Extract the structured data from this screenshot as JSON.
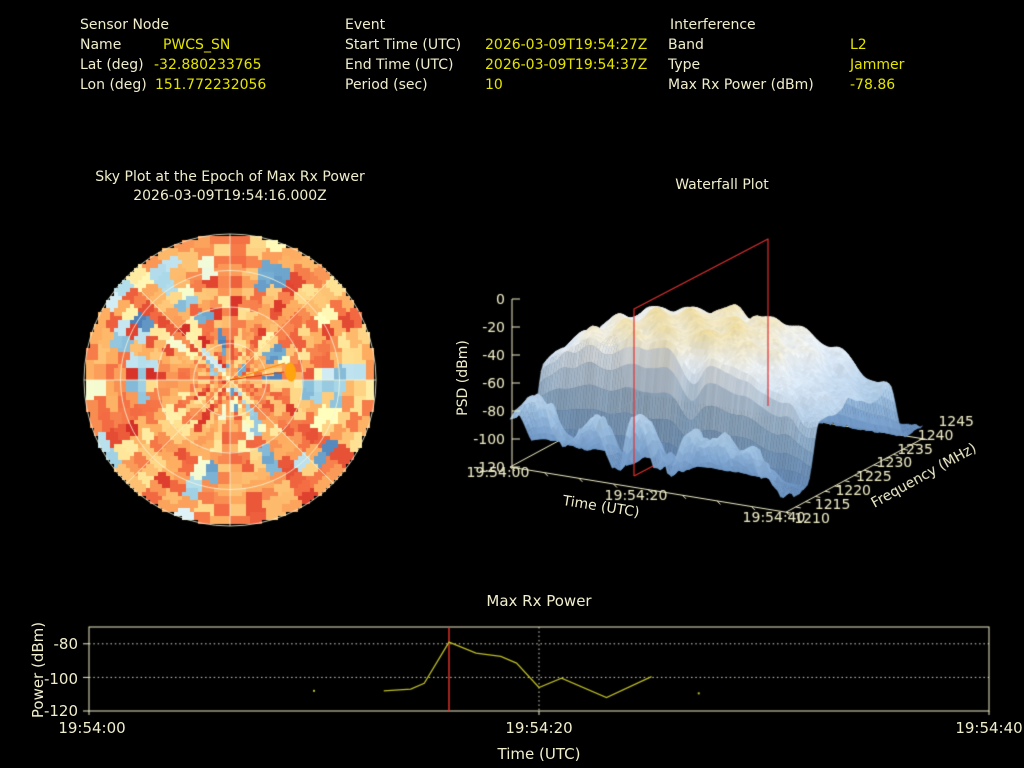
{
  "window": {
    "background": "#000000",
    "label_color": "#f1eecd",
    "value_color": "#e4e400"
  },
  "header": {
    "sensor_node": {
      "title": "Sensor Node",
      "rows": [
        {
          "label": "Name",
          "value": "PWCS_SN"
        },
        {
          "label": "Lat (deg)",
          "value": "-32.880233765"
        },
        {
          "label": "Lon (deg)",
          "value": "151.772232056"
        }
      ]
    },
    "event": {
      "title": "Event",
      "rows": [
        {
          "label": "Start Time (UTC)",
          "value": "2026-03-09T19:54:27Z"
        },
        {
          "label": "End Time (UTC)",
          "value": "2026-03-09T19:54:37Z"
        },
        {
          "label": "Period (sec)",
          "value": "10"
        }
      ]
    },
    "interference": {
      "title": "Interference",
      "rows": [
        {
          "label": "Band",
          "value": "L2"
        },
        {
          "label": "Type",
          "value": "Jammer"
        },
        {
          "label": "Max Rx Power (dBm)",
          "value": "-78.86"
        }
      ]
    }
  },
  "chart_data": [
    {
      "id": "sky_plot",
      "type": "heatmap",
      "projection": "polar-sky-plot",
      "title": "Sky Plot at the Epoch of Max Rx Power",
      "subtitle": "2026-03-09T19:54:16.000Z",
      "colormap": "RdYlBu reversed (orange/red = high, blue = low)",
      "azimuth_bins": 48,
      "elevation_bins": 14,
      "grid": {
        "elevation_circles_fraction": [
          0.25,
          0.5,
          0.75,
          1.0
        ],
        "azimuth_spokes_deg": 45
      },
      "jammer_marker": {
        "azimuth_deg": 82,
        "elevation_deg": 53,
        "color": "#ffa30f",
        "note": "orange bearing wedge drawn from zenith center to marker"
      },
      "render_seed": 7
    },
    {
      "id": "waterfall",
      "type": "heatmap",
      "projection": "3d-surface-waterfall",
      "title": "Waterfall Plot",
      "time_label": "Time (UTC)",
      "freq_label": "Frequency (MHz)",
      "psd_label": "PSD (dBm)",
      "time_ticks": [
        "19:54:00",
        "19:54:20",
        "19:54:40"
      ],
      "time_tick_s": [
        0,
        20,
        40
      ],
      "freq_ticks": [
        1210,
        1215,
        1220,
        1225,
        1230,
        1235,
        1240,
        1245
      ],
      "psd_ticks": [
        0,
        -20,
        -40,
        -60,
        -80,
        -100,
        -120
      ],
      "time_range_s": [
        0,
        40
      ],
      "freq_range_mhz": [
        1210,
        1245
      ],
      "psd_range_dbm": [
        -120,
        0
      ],
      "event_plane": {
        "time": "19:54:16",
        "color": "#e03030"
      },
      "surface": {
        "noise_floor_dbm": -108,
        "plateau_freq_mhz": [
          1216,
          1240
        ],
        "peak_psd_dbm": -25,
        "render_seed": 12345
      }
    },
    {
      "id": "max_rx_power",
      "type": "line",
      "title": "Max Rx Power",
      "xlabel": "Time (UTC)",
      "ylabel": "Power (dBm)",
      "x_ticks": [
        {
          "t": 0,
          "label": "19:54:00"
        },
        {
          "t": 20,
          "label": "19:54:20"
        },
        {
          "t": 40,
          "label": "19:54:40"
        }
      ],
      "y_ticks": [
        -80,
        -100,
        -120
      ],
      "xlim_s": [
        0,
        40
      ],
      "ylim_dbm": [
        -120,
        -70
      ],
      "grid_y_dbm": [
        -80,
        -100
      ],
      "grid_x_s": [
        20
      ],
      "series": {
        "name": "Max Rx Power",
        "color": "#bdbd25",
        "points_t_dbm": [
          [
            13.1,
            -108
          ],
          [
            14.3,
            -107
          ],
          [
            14.9,
            -103.5
          ],
          [
            16,
            -79
          ],
          [
            17.2,
            -85.5
          ],
          [
            18.3,
            -87.5
          ],
          [
            19,
            -91.5
          ],
          [
            20,
            -106
          ],
          [
            21,
            -100.5
          ],
          [
            23,
            -112
          ],
          [
            25,
            -99.5
          ]
        ]
      },
      "isolated_points_t_dbm": [
        [
          10,
          -108
        ],
        [
          27.1,
          -109.5
        ]
      ],
      "epoch_line": {
        "t": 16,
        "label": "19:54:16",
        "color": "#e8342a"
      }
    }
  ]
}
